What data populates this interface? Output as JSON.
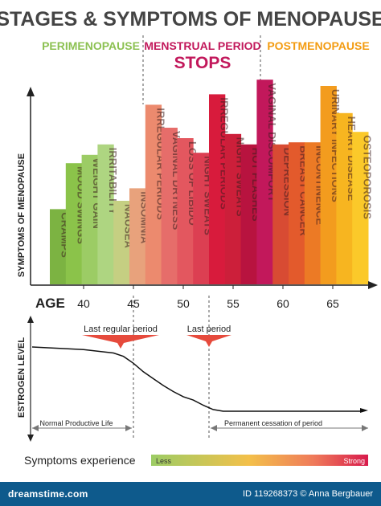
{
  "title": "STAGES & SYMPTOMS OF MENOPAUSE",
  "stages": {
    "perimenopause": "PERIMENOPAUSE",
    "menstrual_line1": "MENSTRUAL PERIOD",
    "menstrual_line2": "STOPS",
    "postmenopause": "POSTMENOPAUSE"
  },
  "colors": {
    "perimenopause": "#8cc152",
    "menstrual": "#c2185b",
    "postmenopause": "#f39c12",
    "title": "#444444",
    "footer": "#0e5a8c"
  },
  "chart_data": [
    {
      "type": "bar",
      "ylabel": "SYMPTOMS OF MENOPAUSE",
      "xlabel": "AGE",
      "x_ticks": [
        40,
        45,
        50,
        55,
        60,
        65
      ],
      "grid": false,
      "legend": "none",
      "categories": [
        "CRAMPS",
        "MOOD SWINGS",
        "WEIGHT GAIN",
        "IRRITABILITY",
        "NAUSEA",
        "INSOMNIA",
        "IRREGULAR PERIODS",
        "VAGINAL DRYNESS",
        "LOSS OF LIBIDO",
        "NIGHT SWEATS",
        "IRREGULAR PERIODS",
        "NIGHT SWEATS",
        "HOT FLASHES",
        "VAGINAL DISCOMFORT",
        "DEPRESSION",
        "BREAST CANCER",
        "INCONTINENCE",
        "URINARY INFECTIONS",
        "HEART DISEASE",
        "OSTEOPOROSIS"
      ],
      "values": [
        36,
        58,
        62,
        67,
        40,
        46,
        86,
        75,
        70,
        63,
        91,
        72,
        67,
        98,
        67,
        68,
        68,
        95,
        82,
        73
      ],
      "colors": [
        "#7cb342",
        "#8bc34a",
        "#9ccc65",
        "#aed581",
        "#c5cf82",
        "#e8a27c",
        "#ec8a6e",
        "#e66d6a",
        "#e3575f",
        "#dc3f52",
        "#d81b3c",
        "#cc1f3a",
        "#b8133f",
        "#c2185b",
        "#d84b33",
        "#e35a2c",
        "#ec7a25",
        "#f39c1e",
        "#f7b520",
        "#fbc92a"
      ]
    },
    {
      "type": "line",
      "xlabel": "AGE",
      "ylabel": "ESTROGEN LEVEL",
      "x": [
        30,
        40,
        43,
        44,
        45,
        46,
        47,
        48,
        49,
        50,
        51,
        52,
        53,
        54,
        55,
        60,
        65,
        68
      ],
      "y": [
        95,
        92,
        88,
        84,
        76,
        66,
        58,
        50,
        43,
        37,
        33,
        27,
        22,
        20,
        20,
        20,
        20,
        20
      ],
      "annotations": [
        "Last regular period",
        "Last period",
        "Normal Productive Life",
        "Permanent cessation of period"
      ]
    }
  ],
  "legend_bar": {
    "label": "Symptoms experience",
    "less": "Less",
    "strong": "Strong"
  },
  "footer": {
    "brand": "dreamstime.com",
    "credit": "ID 119268373 © Anna Bergbauer"
  }
}
